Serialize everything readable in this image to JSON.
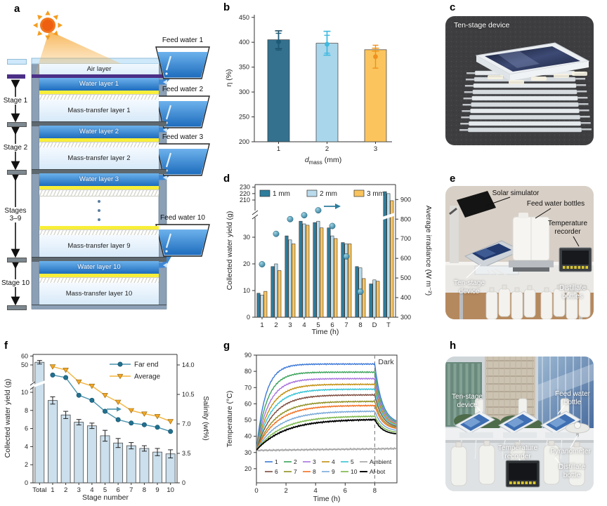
{
  "panels": {
    "a": {
      "label": "a",
      "layers": {
        "air": "Air layer",
        "water1": "Water layer 1",
        "mass1": "Mass-transfer layer 1",
        "water2": "Water layer 2",
        "mass2": "Mass-transfer layer 2",
        "water3": "Water layer 3",
        "mass9": "Mass-transfer layer 9",
        "water10": "Water layer 10",
        "mass10": "Mass-transfer layer 10"
      },
      "stages": [
        {
          "text": "Stage 1"
        },
        {
          "text": "Stage 2"
        },
        {
          "text": "Stages\n3–9"
        },
        {
          "text": "Stage 10"
        }
      ],
      "feeds": [
        {
          "text": "Feed water 1"
        },
        {
          "text": "Feed water 2"
        },
        {
          "text": "Feed water 3"
        },
        {
          "text": "Feed water 10"
        }
      ]
    },
    "b": {
      "label": "b"
    },
    "c": {
      "label": "c",
      "caption": "Ten-stage device"
    },
    "d": {
      "label": "d"
    },
    "e": {
      "label": "e",
      "ann": {
        "solar": "Solar simulator",
        "feed": "Feed water bottles",
        "temp": "Temperature recorder",
        "device": "Ten-stage device",
        "distillate": "Distillate bottles"
      }
    },
    "f": {
      "label": "f"
    },
    "g": {
      "label": "g"
    },
    "h": {
      "label": "h",
      "ann": {
        "device": "Ten-stage device",
        "feed": "Feed water bottle",
        "temp": "Temperature recorder",
        "pyr": "Pyranometer",
        "distillate": "Distillate bottle"
      }
    }
  },
  "chart_data": [
    {
      "id": "b",
      "type": "bar",
      "categories": [
        "1",
        "2",
        "3"
      ],
      "values": [
        405,
        398,
        385
      ],
      "bar_errors": [
        18,
        24,
        3
      ],
      "dot_values": [
        401,
        396,
        371
      ],
      "dot_errors": [
        17,
        18,
        23
      ],
      "bar_colors": [
        "#34718e",
        "#a9d6ea",
        "#fbc45c"
      ],
      "err_colors": [
        "#1d4f66",
        "#3fb9e0",
        "#f39c1d"
      ],
      "dot_colors": [
        "#1d5a78",
        "#3fb9e0",
        "#f0911e"
      ],
      "ylabel": "η (%)",
      "xlabel_main": "d",
      "xlabel_sub": "mass",
      "xlabel_rest": " (mm)",
      "ylim": [
        200,
        450
      ],
      "yticks": [
        200,
        250,
        300,
        350,
        400,
        450
      ]
    },
    {
      "id": "d",
      "type": "grouped-bar-scatter",
      "categories": [
        "1",
        "2",
        "3",
        "4",
        "5",
        "6",
        "7",
        "8",
        "D",
        "T"
      ],
      "series": [
        {
          "name": "1 mm",
          "color": "#2e7d9c",
          "values": [
            9,
            19,
            30.5,
            36,
            35.5,
            33.5,
            28,
            19,
            12.5,
            223
          ]
        },
        {
          "name": "2 mm",
          "color": "#b9dbec",
          "values": [
            8.3,
            20,
            29,
            35,
            36,
            30.5,
            27.5,
            18.5,
            14,
            220
          ]
        },
        {
          "name": "3 mm",
          "color": "#f9c45e",
          "values": [
            9.7,
            17.5,
            27.5,
            34.5,
            33.5,
            29.5,
            27.5,
            14.5,
            13.5,
            209
          ]
        }
      ],
      "irradiance": {
        "hours": [
          1,
          2,
          3,
          4,
          5,
          6,
          7,
          8
        ],
        "values": [
          570,
          725,
          800,
          820,
          845,
          765,
          610,
          430
        ],
        "color": "#2e7d9c"
      },
      "ylabel": "Collected water yield (g)",
      "y2label": "Average irradiance (W m⁻²)",
      "xlabel": "Time (h)",
      "yticks_low": [
        0,
        10,
        20,
        30
      ],
      "yticks_high": [
        210,
        220,
        230
      ],
      "y2ticks": [
        300,
        400,
        500,
        600,
        700,
        800,
        900
      ]
    },
    {
      "id": "f",
      "type": "bar-line",
      "categories": [
        "Total",
        "1",
        "2",
        "3",
        "4",
        "5",
        "6",
        "7",
        "8",
        "9",
        "10"
      ],
      "bar_values": [
        53,
        9.1,
        7.5,
        6.7,
        6.3,
        5.2,
        4.4,
        4.1,
        3.8,
        3.4,
        3.2
      ],
      "bar_errors": [
        2,
        0.4,
        0.4,
        0.3,
        0.3,
        0.6,
        0.5,
        0.35,
        0.3,
        0.4,
        0.45
      ],
      "bar_color": "#cbdfec",
      "lines": [
        {
          "name": "Far end",
          "color": "#4a93ad",
          "marker": "circle",
          "marker_color": "#21708e",
          "values": [
            12.8,
            12.5,
            10.4,
            9.8,
            8.5,
            7.5,
            7.1,
            6.9,
            6.6,
            6.1
          ]
        },
        {
          "name": "Average",
          "color": "#f2b33d",
          "marker": "triangle-down",
          "marker_color": "#f5a623",
          "values": [
            13.8,
            13.4,
            12.0,
            11.5,
            10.4,
            9.6,
            8.6,
            8.2,
            7.9,
            7.3
          ]
        }
      ],
      "ylabel": "Collected water yield (g)",
      "y2label": "Salinity (wt%)",
      "xlabel": "Stage number",
      "yticks_low": [
        0,
        2,
        4,
        6,
        8,
        10
      ],
      "yticks_high": [
        50,
        60
      ],
      "y2ticks": [
        0,
        3.5,
        7.0,
        10.5,
        14.0
      ]
    },
    {
      "id": "g",
      "type": "line",
      "ylabel": "Temperature (°C)",
      "xlabel": "Time (h)",
      "xticks": [
        0,
        2,
        4,
        6,
        8
      ],
      "yticks": [
        20,
        30,
        40,
        50,
        60,
        70,
        80,
        90
      ],
      "xlim": [
        0,
        9.5
      ],
      "ylim": [
        11.3,
        90
      ],
      "dark_label": "Dark",
      "dark_x": 8,
      "start_temp": 31.5,
      "series": [
        {
          "name": "1",
          "color": "#3b78d8",
          "plateau": 84.5,
          "tau": 0.62,
          "end": 47.5
        },
        {
          "name": "2",
          "color": "#3aa35a",
          "plateau": 79.5,
          "tau": 0.72,
          "end": 47
        },
        {
          "name": "3",
          "color": "#a873dd",
          "plateau": 75.5,
          "tau": 0.82,
          "end": 46.5
        },
        {
          "name": "4",
          "color": "#c28f10",
          "plateau": 72,
          "tau": 0.92,
          "end": 46
        },
        {
          "name": "5",
          "color": "#35c3d4",
          "plateau": 69,
          "tau": 1.02,
          "end": 45.5
        },
        {
          "name": "6",
          "color": "#7c4a3d",
          "plateau": 65.5,
          "tau": 1.12,
          "end": 45
        },
        {
          "name": "7",
          "color": "#8f8f22",
          "plateau": 61.5,
          "tau": 1.25,
          "end": 44.5
        },
        {
          "name": "8",
          "color": "#f36f21",
          "plateau": 59,
          "tau": 1.35,
          "end": 44
        },
        {
          "name": "9",
          "color": "#78a8d8",
          "plateau": 55.5,
          "tau": 1.5,
          "end": 43
        },
        {
          "name": "10",
          "color": "#7ab648",
          "plateau": 52.5,
          "tau": 1.7,
          "end": 42
        },
        {
          "name": "Ambient",
          "color": "#a3a3a3",
          "flat": true,
          "plateau": 32.5,
          "tau": 1,
          "end": 33
        },
        {
          "name": "Al-bot",
          "color": "#000000",
          "plateau": 50.5,
          "tau": 1.9,
          "end": 41
        }
      ]
    }
  ]
}
